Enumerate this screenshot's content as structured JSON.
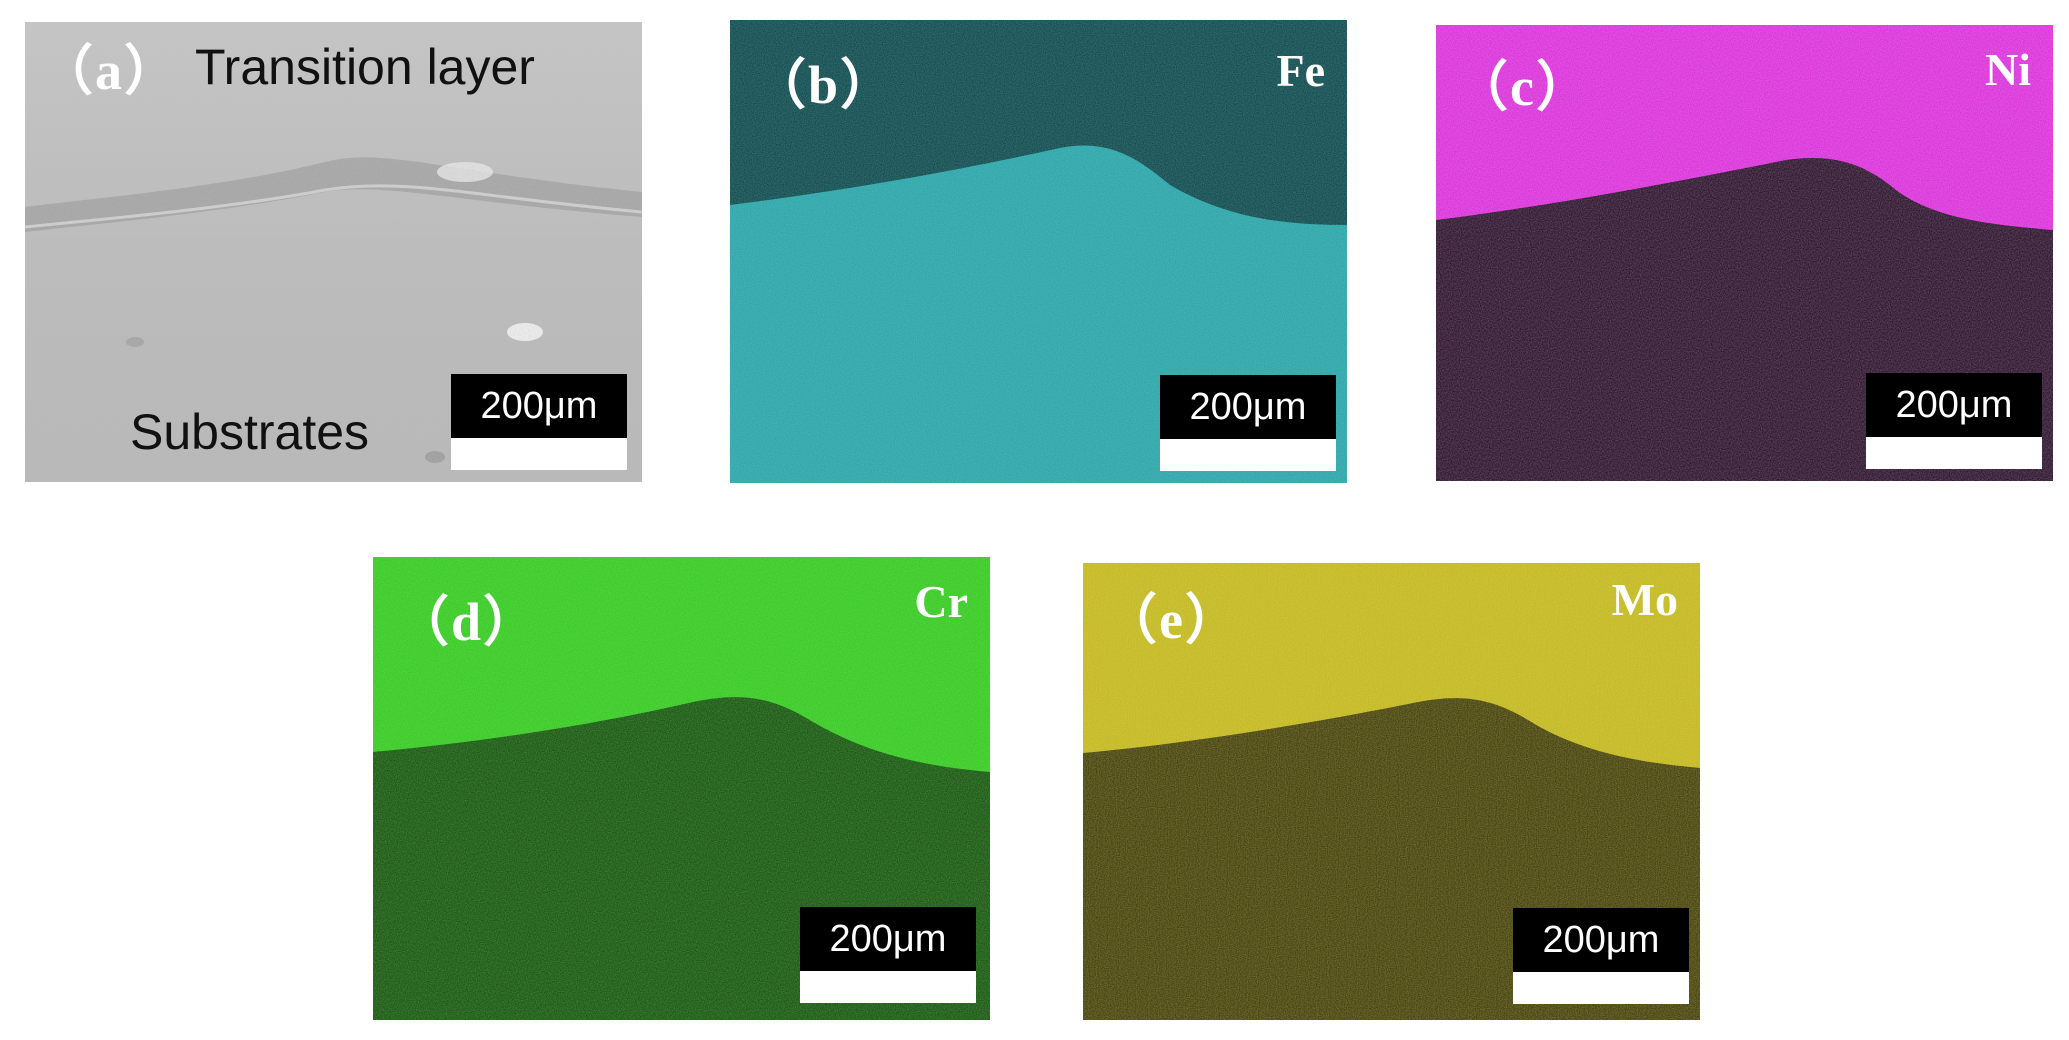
{
  "panels": [
    {
      "label": "（a）",
      "element": "",
      "scale_text": "200μm",
      "annotations": {
        "top": "Transition layer",
        "bottom": "Substrates"
      },
      "colors": {
        "top": "#c2c2c2",
        "bottom": "#bdbdbd"
      }
    },
    {
      "label": "（b）",
      "element": "Fe",
      "scale_text": "200μm",
      "colors": {
        "top": "#0d3a3c",
        "bottom": "#2a9fa2"
      }
    },
    {
      "label": "（c）",
      "element": "Ni",
      "scale_text": "200μm",
      "colors": {
        "top": "#d622d6",
        "bottom": "#0e020e"
      }
    },
    {
      "label": "（d）",
      "element": "Cr",
      "scale_text": "200μm",
      "colors": {
        "top": "#2fc41e",
        "bottom": "#0d3f0a"
      }
    },
    {
      "label": "（e）",
      "element": "Mo",
      "scale_text": "200μm",
      "colors": {
        "top": "#bdb21a",
        "bottom": "#2e2b06"
      }
    }
  ]
}
